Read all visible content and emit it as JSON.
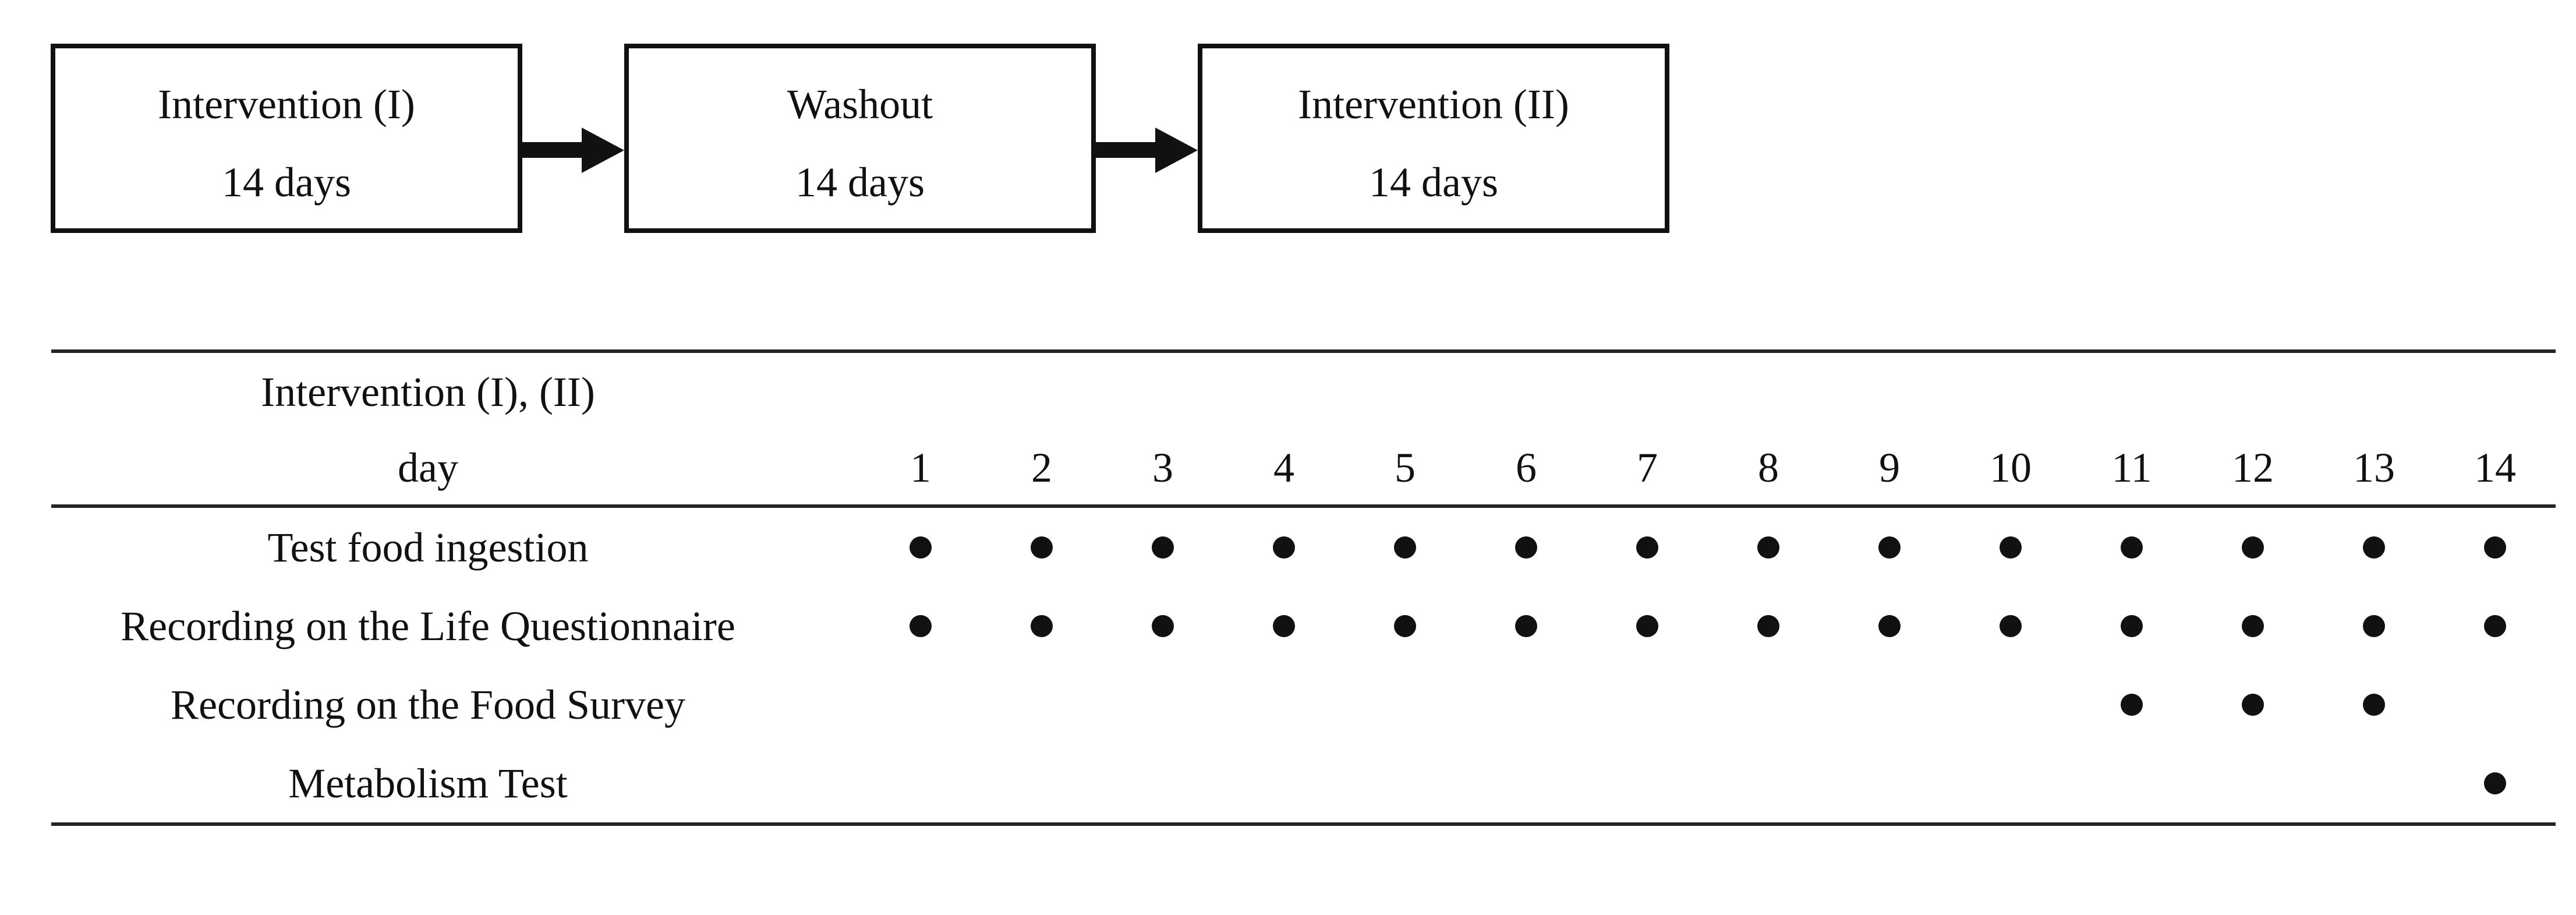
{
  "figure": {
    "flow": {
      "steps": [
        {
          "title": "Intervention (I)",
          "duration": "14 days"
        },
        {
          "title": "Washout",
          "duration": "14 days"
        },
        {
          "title": "Intervention (II)",
          "duration": "14 days"
        }
      ]
    },
    "schedule": {
      "group_header": "Intervention (I), (II)",
      "day_header": "day",
      "days": [
        "1",
        "2",
        "3",
        "4",
        "5",
        "6",
        "7",
        "8",
        "9",
        "10",
        "11",
        "12",
        "13",
        "14"
      ],
      "rows": [
        {
          "label": "Test food ingestion",
          "dot_days": [
            1,
            2,
            3,
            4,
            5,
            6,
            7,
            8,
            9,
            10,
            11,
            12,
            13,
            14
          ]
        },
        {
          "label": "Recording on the Life Questionnaire",
          "dot_days": [
            1,
            2,
            3,
            4,
            5,
            6,
            7,
            8,
            9,
            10,
            11,
            12,
            13,
            14
          ]
        },
        {
          "label": "Recording on the Food Survey",
          "dot_days": [
            11,
            12,
            13
          ]
        },
        {
          "label": "Metabolism Test",
          "dot_days": [
            14
          ]
        }
      ],
      "dot_symbol": "●"
    },
    "colors": {
      "ink": "#111111",
      "rule": "#242424",
      "background": "#ffffff"
    }
  }
}
